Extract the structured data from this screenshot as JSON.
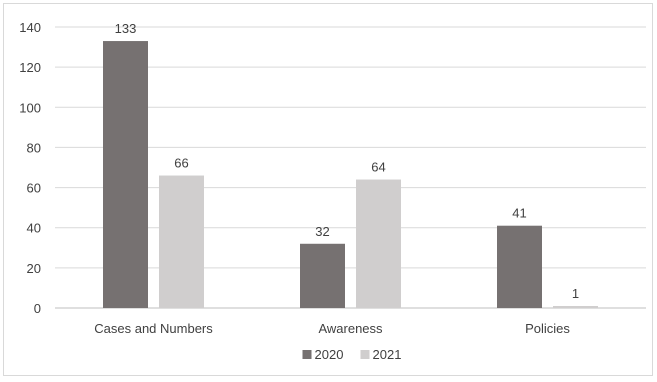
{
  "chart_data": {
    "type": "bar",
    "title": "",
    "xlabel": "",
    "ylabel": "",
    "categories": [
      "Cases and Numbers",
      "Awareness",
      "Policies"
    ],
    "series": [
      {
        "name": "2020",
        "values": [
          133,
          32,
          41
        ],
        "color": "#767171"
      },
      {
        "name": "2021",
        "values": [
          66,
          64,
          1
        ],
        "color": "#d0cece"
      }
    ],
    "ylim": [
      0,
      140
    ],
    "yticks": [
      0,
      20,
      40,
      60,
      80,
      100,
      120,
      140
    ],
    "grid": true,
    "data_labels": true,
    "legend_position": "bottom"
  }
}
